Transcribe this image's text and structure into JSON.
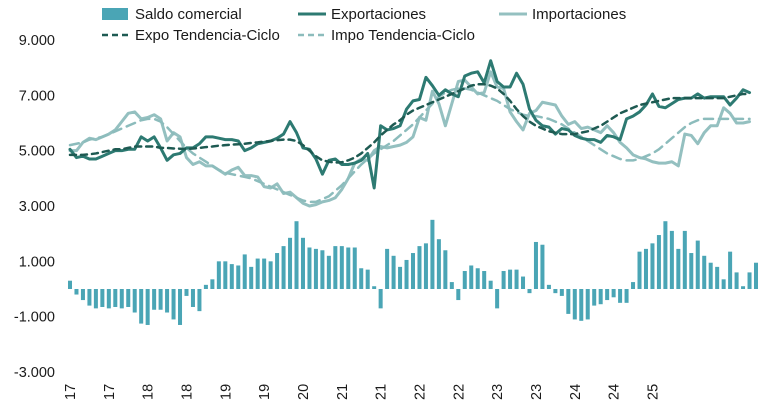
{
  "chart_data": {
    "type": "bar+line",
    "title": "",
    "xlabel": "",
    "ylabel": "",
    "ylim": [
      -3000,
      9000
    ],
    "yticks": [
      "9.000",
      "7.000",
      "5.000",
      "3.000",
      "1.000",
      "-1.000",
      "-3.000"
    ],
    "ytick_values": [
      9000,
      7000,
      5000,
      3000,
      1000,
      -1000,
      -3000
    ],
    "xtick_labels": [
      "17",
      "17",
      "18",
      "18",
      "19",
      "19",
      "20",
      "21",
      "21",
      "22",
      "22",
      "23",
      "23",
      "24",
      "24",
      "25"
    ],
    "xtick_positions": [
      0,
      6,
      12,
      18,
      24,
      30,
      36,
      42,
      48,
      54,
      60,
      66,
      72,
      78,
      84,
      90
    ],
    "grid": false,
    "legend_position": "top",
    "colors": {
      "saldo": "#4aa5b5",
      "exportaciones": "#2d7a72",
      "importaciones": "#94c0c0",
      "expo_tendencia": "#1e5a52",
      "impo_tendencia": "#8cbcbc"
    },
    "series": [
      {
        "name": "Saldo comercial",
        "type": "bar",
        "values": [
          300,
          -200,
          -400,
          -600,
          -700,
          -650,
          -700,
          -650,
          -700,
          -650,
          -850,
          -1250,
          -1300,
          -750,
          -750,
          -850,
          -1100,
          -1300,
          -250,
          -650,
          -800,
          150,
          350,
          1000,
          1000,
          900,
          850,
          1250,
          800,
          1100,
          1100,
          1000,
          1300,
          1550,
          1850,
          2450,
          1850,
          1500,
          1450,
          1400,
          1200,
          1550,
          1550,
          1500,
          1500,
          750,
          700,
          100,
          -700,
          1450,
          1200,
          800,
          1050,
          1300,
          1550,
          1650,
          2500,
          1800,
          1400,
          250,
          -400,
          650,
          850,
          750,
          650,
          300,
          -700,
          650,
          700,
          700,
          450,
          -150,
          1700,
          1600,
          150,
          -150,
          -250,
          -900,
          -1100,
          -1150,
          -1100,
          -600,
          -550,
          -400,
          -300,
          -500,
          -500,
          250,
          1350,
          1450,
          1650,
          1950,
          2450,
          2100,
          1450,
          2100,
          1300,
          1750,
          1200,
          950,
          800,
          350,
          1350,
          600,
          100,
          600,
          950
        ]
      },
      {
        "name": "Exportaciones",
        "type": "line",
        "values": [
          5050,
          4750,
          4800,
          4700,
          4700,
          4800,
          4900,
          5000,
          5000,
          5050,
          5050,
          5500,
          5350,
          5500,
          5100,
          4650,
          4850,
          4900,
          5100,
          5100,
          5250,
          5500,
          5500,
          5450,
          5400,
          5400,
          5350,
          5000,
          5100,
          5250,
          5300,
          5350,
          5450,
          5600,
          6050,
          5650,
          5100,
          5050,
          4700,
          4150,
          4650,
          4700,
          4500,
          4500,
          4550,
          4650,
          4900,
          3650,
          5900,
          5750,
          5800,
          5900,
          6500,
          6800,
          6850,
          7650,
          7350,
          7000,
          7200,
          7050,
          6950,
          7700,
          7800,
          7850,
          7450,
          8250,
          7500,
          7300,
          7300,
          7800,
          7400,
          6500,
          6100,
          5900,
          5850,
          5600,
          5800,
          5750,
          5550,
          5450,
          5400,
          5400,
          5300,
          5550,
          5500,
          5400,
          6150,
          6250,
          6400,
          6650,
          7050,
          6600,
          6550,
          6700,
          6850,
          6900,
          6900,
          7050,
          6900,
          6950,
          6950,
          6950,
          6650,
          6900,
          7200,
          7100
        ],
        "trend": "solid"
      },
      {
        "name": "Importaciones",
        "type": "line",
        "values": [
          5000,
          5000,
          5300,
          5450,
          5400,
          5500,
          5600,
          5750,
          6050,
          6350,
          6400,
          6150,
          6200,
          6300,
          6150,
          5350,
          5650,
          5500,
          4750,
          4500,
          4600,
          4450,
          4450,
          4300,
          4150,
          4300,
          4400,
          4100,
          4100,
          4050,
          3700,
          3650,
          3800,
          3450,
          3500,
          3300,
          3100,
          3000,
          3050,
          3150,
          3200,
          3300,
          3600,
          4000,
          4550,
          4700,
          4650,
          5000,
          5150,
          5100,
          5150,
          5200,
          5300,
          5500,
          6200,
          6100,
          7150,
          6700,
          5900,
          6700,
          7500,
          7550,
          7300,
          7050,
          7100,
          7850,
          7300,
          7250,
          6400,
          6050,
          5750,
          6350,
          6450,
          6750,
          6700,
          6650,
          6250,
          5950,
          6050,
          5800,
          5850,
          5750,
          5650,
          5900,
          5650,
          5300,
          5100,
          4850,
          4750,
          4700,
          4600,
          4550,
          4550,
          4600,
          4450,
          5600,
          5550,
          5250,
          5650,
          5900,
          5900,
          6550,
          6350,
          6000,
          6000,
          6050
        ],
        "trend": "solid"
      },
      {
        "name": "Expo Tendencia-Ciclo",
        "type": "line",
        "style": "dashed",
        "values": [
          4850,
          4850,
          4850,
          4870,
          4900,
          4950,
          5000,
          5050,
          5050,
          5100,
          5150,
          5150,
          5150,
          5150,
          5100,
          5100,
          5080,
          5070,
          5060,
          5080,
          5100,
          5130,
          5150,
          5180,
          5200,
          5220,
          5230,
          5250,
          5280,
          5300,
          5330,
          5350,
          5380,
          5400,
          5400,
          5350,
          5200,
          5000,
          4800,
          4650,
          4600,
          4570,
          4580,
          4650,
          4750,
          4900,
          5100,
          5300,
          5550,
          5750,
          5950,
          6100,
          6300,
          6450,
          6550,
          6650,
          6750,
          6850,
          6950,
          7050,
          7150,
          7250,
          7350,
          7400,
          7400,
          7350,
          7250,
          7050,
          6800,
          6500,
          6250,
          6050,
          5900,
          5800,
          5700,
          5650,
          5600,
          5600,
          5600,
          5650,
          5700,
          5800,
          5900,
          6050,
          6200,
          6350,
          6450,
          6550,
          6650,
          6700,
          6750,
          6800,
          6850,
          6900,
          6900,
          6900,
          6900,
          6900,
          6900,
          6900,
          6900,
          6900,
          6950,
          7000,
          7050,
          7050
        ],
        "trend": "dashed"
      },
      {
        "name": "Impo Tendencia-Ciclo",
        "type": "line",
        "style": "dashed",
        "values": [
          5200,
          5250,
          5300,
          5400,
          5450,
          5500,
          5600,
          5700,
          5800,
          5900,
          6000,
          6100,
          6150,
          6150,
          6050,
          5850,
          5600,
          5350,
          5100,
          4900,
          4750,
          4600,
          4450,
          4300,
          4200,
          4150,
          4100,
          4050,
          4000,
          3900,
          3800,
          3700,
          3600,
          3500,
          3400,
          3300,
          3200,
          3150,
          3150,
          3250,
          3350,
          3550,
          3750,
          4000,
          4250,
          4500,
          4700,
          4900,
          5050,
          5200,
          5350,
          5550,
          5750,
          5950,
          6200,
          6450,
          6700,
          6950,
          7100,
          7200,
          7250,
          7250,
          7200,
          7100,
          7000,
          6900,
          6800,
          6650,
          6500,
          6400,
          6300,
          6250,
          6250,
          6200,
          6150,
          6050,
          5950,
          5800,
          5650,
          5500,
          5350,
          5200,
          5050,
          4900,
          4800,
          4700,
          4650,
          4650,
          4700,
          4800,
          4900,
          5050,
          5250,
          5450,
          5650,
          5850,
          6000,
          6100,
          6150,
          6150,
          6150,
          6150,
          6150,
          6150,
          6150,
          6150
        ],
        "trend": "dashed"
      }
    ],
    "legend": [
      {
        "label": "Saldo comercial",
        "kind": "bar",
        "series": 0
      },
      {
        "label": "Exportaciones",
        "kind": "line",
        "series": 1
      },
      {
        "label": "Importaciones",
        "kind": "line",
        "series": 2
      },
      {
        "label": "Expo Tendencia-Ciclo",
        "kind": "dashed",
        "series": 3
      },
      {
        "label": "Impo Tendencia-Ciclo",
        "kind": "dashed",
        "series": 4
      }
    ]
  }
}
